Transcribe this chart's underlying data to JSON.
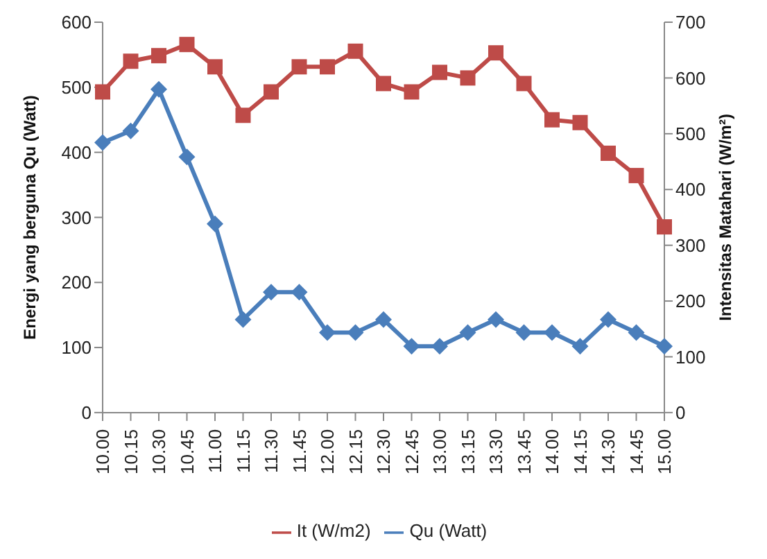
{
  "chart_data": {
    "type": "line",
    "ylabel": "Energi yang berguna Qu (Watt)",
    "y2label": "Intensitas Matahari (W/m²)",
    "categories": [
      "10.00",
      "10.15",
      "10.30",
      "10.45",
      "11.00",
      "11.15",
      "11.30",
      "11.45",
      "12.00",
      "12.15",
      "12.30",
      "12.45",
      "13.00",
      "13.15",
      "13.30",
      "13.45",
      "14.00",
      "14.15",
      "14.30",
      "14.45",
      "15.00"
    ],
    "series": [
      {
        "name": "Qu (Watt)",
        "color": "#4a7ebb",
        "marker": "diamond",
        "values": [
          415,
          433,
          497,
          393,
          290,
          143,
          185,
          185,
          123,
          123,
          143,
          102,
          102,
          123,
          143,
          123,
          123,
          102,
          143,
          123,
          102
        ]
      },
      {
        "name": "It (W/m2)",
        "color": "#be4b48",
        "marker": "square",
        "axis": "y2",
        "values": [
          575,
          630,
          640,
          660,
          620,
          533,
          575,
          620,
          620,
          648,
          590,
          575,
          610,
          600,
          645,
          590,
          525,
          520,
          465,
          425,
          333
        ]
      }
    ],
    "ylim": [
      0,
      600
    ],
    "yticks": [
      0,
      100,
      200,
      300,
      400,
      500,
      600
    ],
    "y2lim": [
      0,
      700
    ],
    "y2ticks": [
      0,
      100,
      200,
      300,
      400,
      500,
      600,
      700
    ],
    "grid": false,
    "legend": "bottom"
  }
}
